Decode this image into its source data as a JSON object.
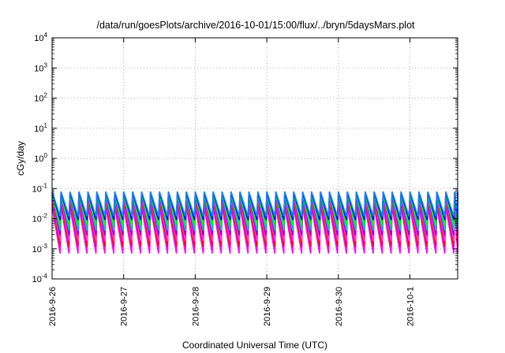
{
  "chart_data": {
    "type": "line",
    "title": "/data/run/goesPlots/archive/2016-10-01/15:00/flux/../bryn/5daysMars.plot",
    "xlabel": "Coordinated Universal Time (UTC)",
    "ylabel": "cGy/day",
    "y_scale": "log",
    "ylim": [
      0.0001,
      10000
    ],
    "xlim": [
      "2016-09-26T00:00",
      "2016-10-01T16:00"
    ],
    "grid": true,
    "y_ticks": [
      {
        "base": "10",
        "exp": "-4"
      },
      {
        "base": "10",
        "exp": "-3"
      },
      {
        "base": "10",
        "exp": "-2"
      },
      {
        "base": "10",
        "exp": "-1"
      },
      {
        "base": "10",
        "exp": "0"
      },
      {
        "base": "10",
        "exp": "1"
      },
      {
        "base": "10",
        "exp": "2"
      },
      {
        "base": "10",
        "exp": "3"
      },
      {
        "base": "10",
        "exp": "4"
      }
    ],
    "x_ticks": [
      "2016-9-26",
      "2016-9-27",
      "2016-9-28",
      "2016-9-29",
      "2016-9-30",
      "2016-10-1"
    ],
    "sawtooth_period_hours": 3,
    "series": [
      {
        "color": "#ff00ff",
        "peak": 0.025,
        "trough": 0.0007
      },
      {
        "color": "#ff0000",
        "peak": 0.04,
        "trough": 0.0012
      },
      {
        "color": "#ff3fbf",
        "peak": 0.05,
        "trough": 0.0018
      },
      {
        "color": "#7f00ff",
        "peak": 0.06,
        "trough": 0.0028
      },
      {
        "color": "#00bfbf",
        "peak": 0.065,
        "trough": 0.004
      },
      {
        "color": "#00ff00",
        "peak": 0.07,
        "trough": 0.006
      },
      {
        "color": "#0000ff",
        "peak": 0.075,
        "trough": 0.009
      },
      {
        "color": "#1f7fff",
        "peak": 0.08,
        "trough": 0.012
      }
    ]
  }
}
